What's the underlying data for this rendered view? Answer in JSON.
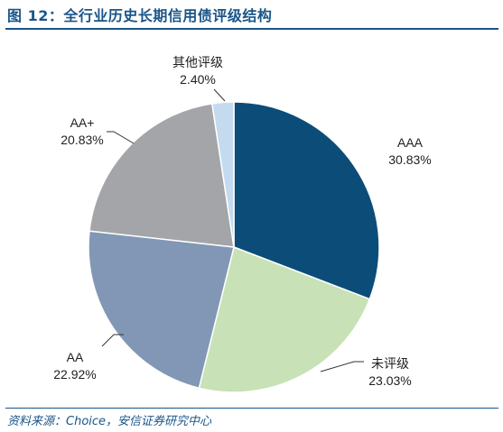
{
  "figure": {
    "title": "图 12：全行业历史长期信用债评级结构",
    "source": "资料来源：Choice，安信证券研究中心"
  },
  "colors": {
    "title": "#1a5589",
    "AAA": "#0b4d78",
    "未评级": "#c8e1b6",
    "AA": "#8197b5",
    "AA+": "#a3a5a8",
    "其他评级": "#c4dbef"
  },
  "chart_data": {
    "type": "pie",
    "start_angle": "12 o'clock",
    "direction": "clockwise",
    "slices": [
      {
        "label": "AAA",
        "value": 30.83,
        "value_label": "30.83%"
      },
      {
        "label": "未评级",
        "value": 23.03,
        "value_label": "23.03%"
      },
      {
        "label": "AA",
        "value": 22.92,
        "value_label": "22.92%"
      },
      {
        "label": "AA+",
        "value": 20.83,
        "value_label": "20.83%"
      },
      {
        "label": "其他评级",
        "value": 2.4,
        "value_label": "2.40%"
      }
    ]
  }
}
